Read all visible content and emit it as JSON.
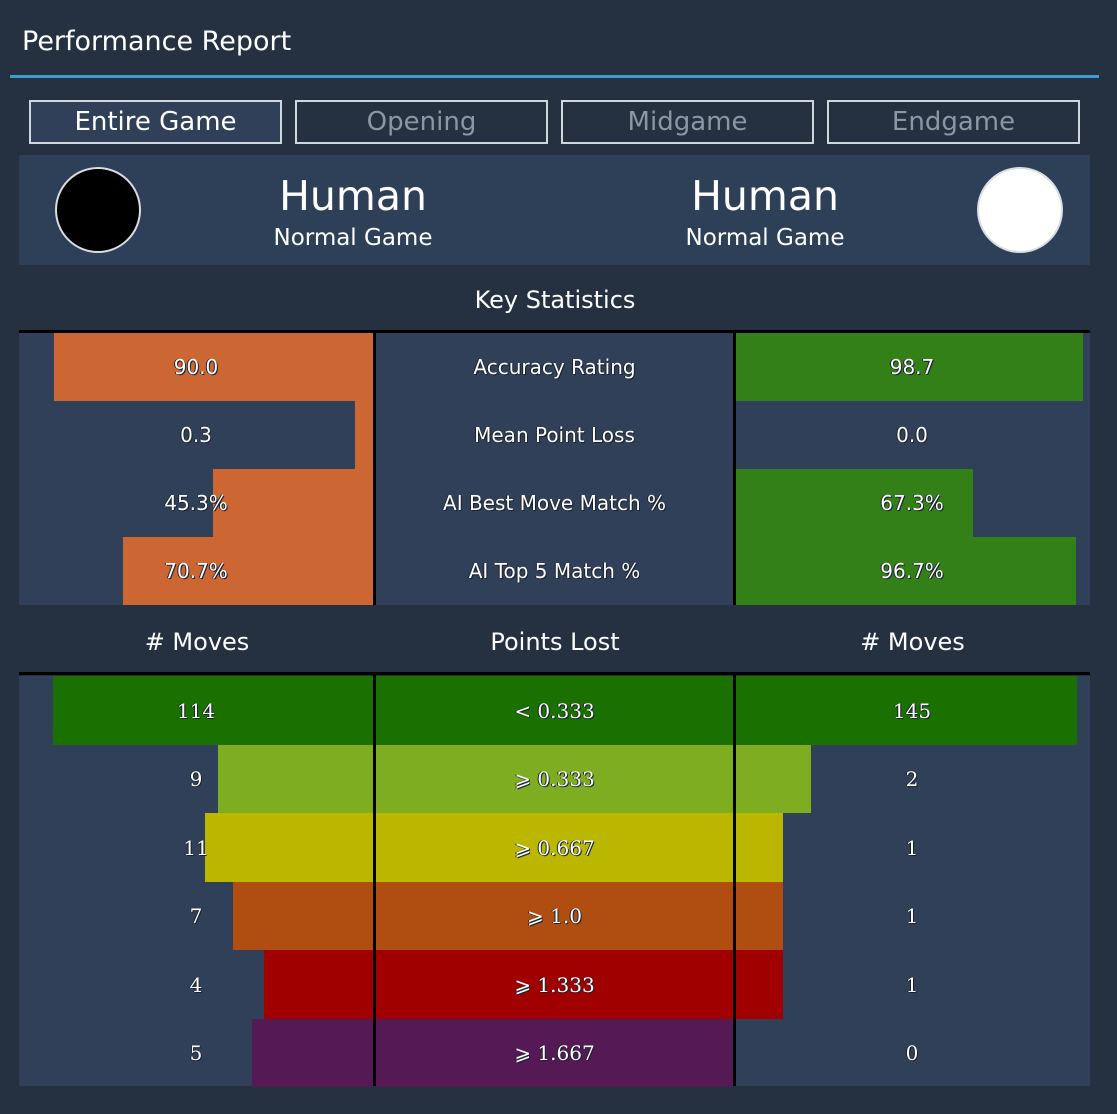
{
  "title": "Performance Report",
  "tabs": [
    {
      "label": "Entire Game",
      "active": true
    },
    {
      "label": "Opening",
      "active": false
    },
    {
      "label": "Midgame",
      "active": false
    },
    {
      "label": "Endgame",
      "active": false
    }
  ],
  "players": {
    "black": {
      "name": "Human",
      "subtitle": "Normal Game",
      "stone": "black"
    },
    "white": {
      "name": "Human",
      "subtitle": "Normal Game",
      "stone": "white"
    }
  },
  "key_statistics": {
    "title": "Key Statistics",
    "rows": [
      {
        "label": "Accuracy Rating",
        "black": "90.0",
        "white": "98.7",
        "black_fraction": 0.9,
        "white_fraction": 0.987
      },
      {
        "label": "Mean Point Loss",
        "black": "0.3",
        "white": "0.0",
        "black_fraction": 0.05,
        "white_fraction": 0.0
      },
      {
        "label": "AI Best Move Match %",
        "black": "45.3%",
        "white": "67.3%",
        "black_fraction": 0.453,
        "white_fraction": 0.673
      },
      {
        "label": "AI Top 5 Match %",
        "black": "70.7%",
        "white": "96.7%",
        "black_fraction": 0.707,
        "white_fraction": 0.967
      }
    ]
  },
  "points_lost": {
    "headers": {
      "left": "# Moves",
      "center": "Points Lost",
      "right": "# Moves"
    },
    "max_moves": 145,
    "rows": [
      {
        "label": "< 0.333",
        "black": "114",
        "white": "145",
        "black_count": 114,
        "white_count": 145,
        "color": "#1a7000"
      },
      {
        "label": "⩾ 0.333",
        "black": "9",
        "white": "2",
        "black_count": 9,
        "white_count": 2,
        "color": "#7ead22"
      },
      {
        "label": "⩾ 0.667",
        "black": "11",
        "white": "1",
        "black_count": 11,
        "white_count": 1,
        "color": "#bbb700"
      },
      {
        "label": "⩾ 1.0",
        "black": "7",
        "white": "1",
        "black_count": 7,
        "white_count": 1,
        "color": "#b04e12"
      },
      {
        "label": "⩾ 1.333",
        "black": "4",
        "white": "1",
        "black_count": 4,
        "white_count": 1,
        "color": "#a00000"
      },
      {
        "label": "⩾ 1.667",
        "black": "5",
        "white": "0",
        "black_count": 5,
        "white_count": 0,
        "color": "#551a55"
      }
    ]
  },
  "colors": {
    "background": "#253040",
    "panel": "#2f4058",
    "accent": "#3d9bcf",
    "black_stat_bar": "#cc6633",
    "white_stat_bar": "#338019"
  }
}
